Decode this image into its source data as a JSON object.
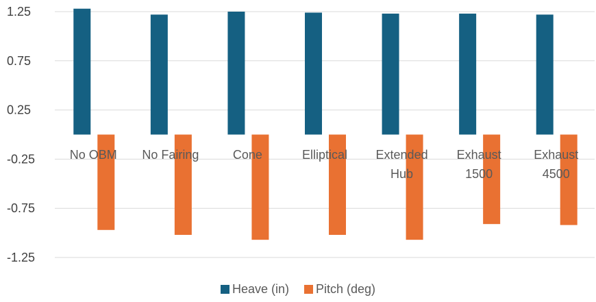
{
  "chart_data": {
    "type": "bar",
    "categories": [
      [
        "No OBM"
      ],
      [
        "No Fairing"
      ],
      [
        "Cone"
      ],
      [
        "Elliptical"
      ],
      [
        "Extended",
        "Hub"
      ],
      [
        "Exhaust",
        "1500"
      ],
      [
        "Exhaust",
        "4500"
      ]
    ],
    "series": [
      {
        "name": "Heave (in)",
        "color": "#156082",
        "values": [
          1.28,
          1.22,
          1.25,
          1.24,
          1.23,
          1.23,
          1.22
        ]
      },
      {
        "name": "Pitch (deg)",
        "color": "#E97132",
        "values": [
          -0.97,
          -1.02,
          -1.07,
          -1.02,
          -1.07,
          -0.91,
          -0.92
        ]
      }
    ],
    "yticks": [
      "1.25",
      "0.75",
      "0.25",
      "-0.25",
      "-0.75",
      "-1.25"
    ],
    "ylim": [
      -1.25,
      1.25
    ],
    "gridlines": true,
    "legend_position": "bottom",
    "title": "",
    "xlabel": "",
    "ylabel": ""
  }
}
